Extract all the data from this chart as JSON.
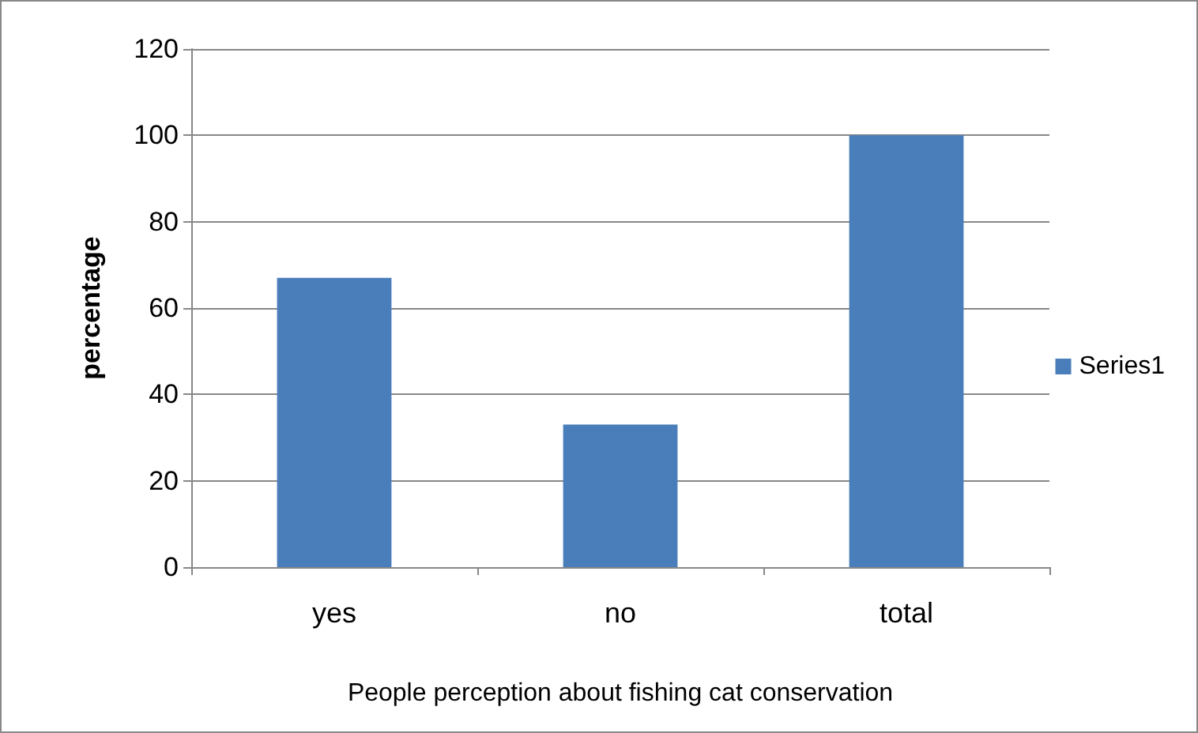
{
  "chart_data": {
    "type": "bar",
    "xlabel": "People perception about fishing cat conservation",
    "ylabel": "percentage",
    "categories": [
      "yes",
      "no",
      "total"
    ],
    "series": [
      {
        "name": "Series1",
        "color": "#4a7ebb",
        "values": [
          67,
          33,
          100
        ]
      }
    ],
    "ylim": [
      0,
      120
    ],
    "yticks": [
      0,
      20,
      40,
      60,
      80,
      100,
      120
    ],
    "grid": "y",
    "legend": "right"
  }
}
